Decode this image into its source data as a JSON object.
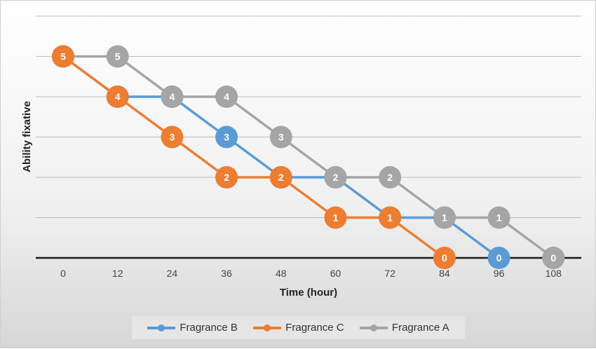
{
  "chart_data": {
    "type": "line",
    "title": "",
    "xlabel": "Time (hour)",
    "ylabel": "Ability fixative",
    "categories": [
      "0",
      "12",
      "24",
      "36",
      "48",
      "60",
      "72",
      "84",
      "96",
      "108"
    ],
    "x": [
      0,
      12,
      24,
      36,
      48,
      60,
      72,
      84,
      96,
      108
    ],
    "ylim": [
      0,
      6
    ],
    "y_tick_labels": false,
    "grid": true,
    "legend": "bottom",
    "point_labels": true,
    "draw_order": [
      0,
      2,
      1
    ],
    "series": [
      {
        "name": "Fragrance B",
        "color": "#5b9bd5",
        "values": [
          5,
          4,
          4,
          3,
          2,
          2,
          1,
          1,
          0,
          null
        ]
      },
      {
        "name": "Fragrance C",
        "color": "#ed7d31",
        "values": [
          5,
          4,
          3,
          2,
          2,
          1,
          1,
          0,
          null,
          null
        ]
      },
      {
        "name": "Fragrance A",
        "color": "#a5a5a5",
        "values": [
          5,
          5,
          4,
          4,
          3,
          2,
          2,
          1,
          1,
          0
        ]
      }
    ]
  }
}
